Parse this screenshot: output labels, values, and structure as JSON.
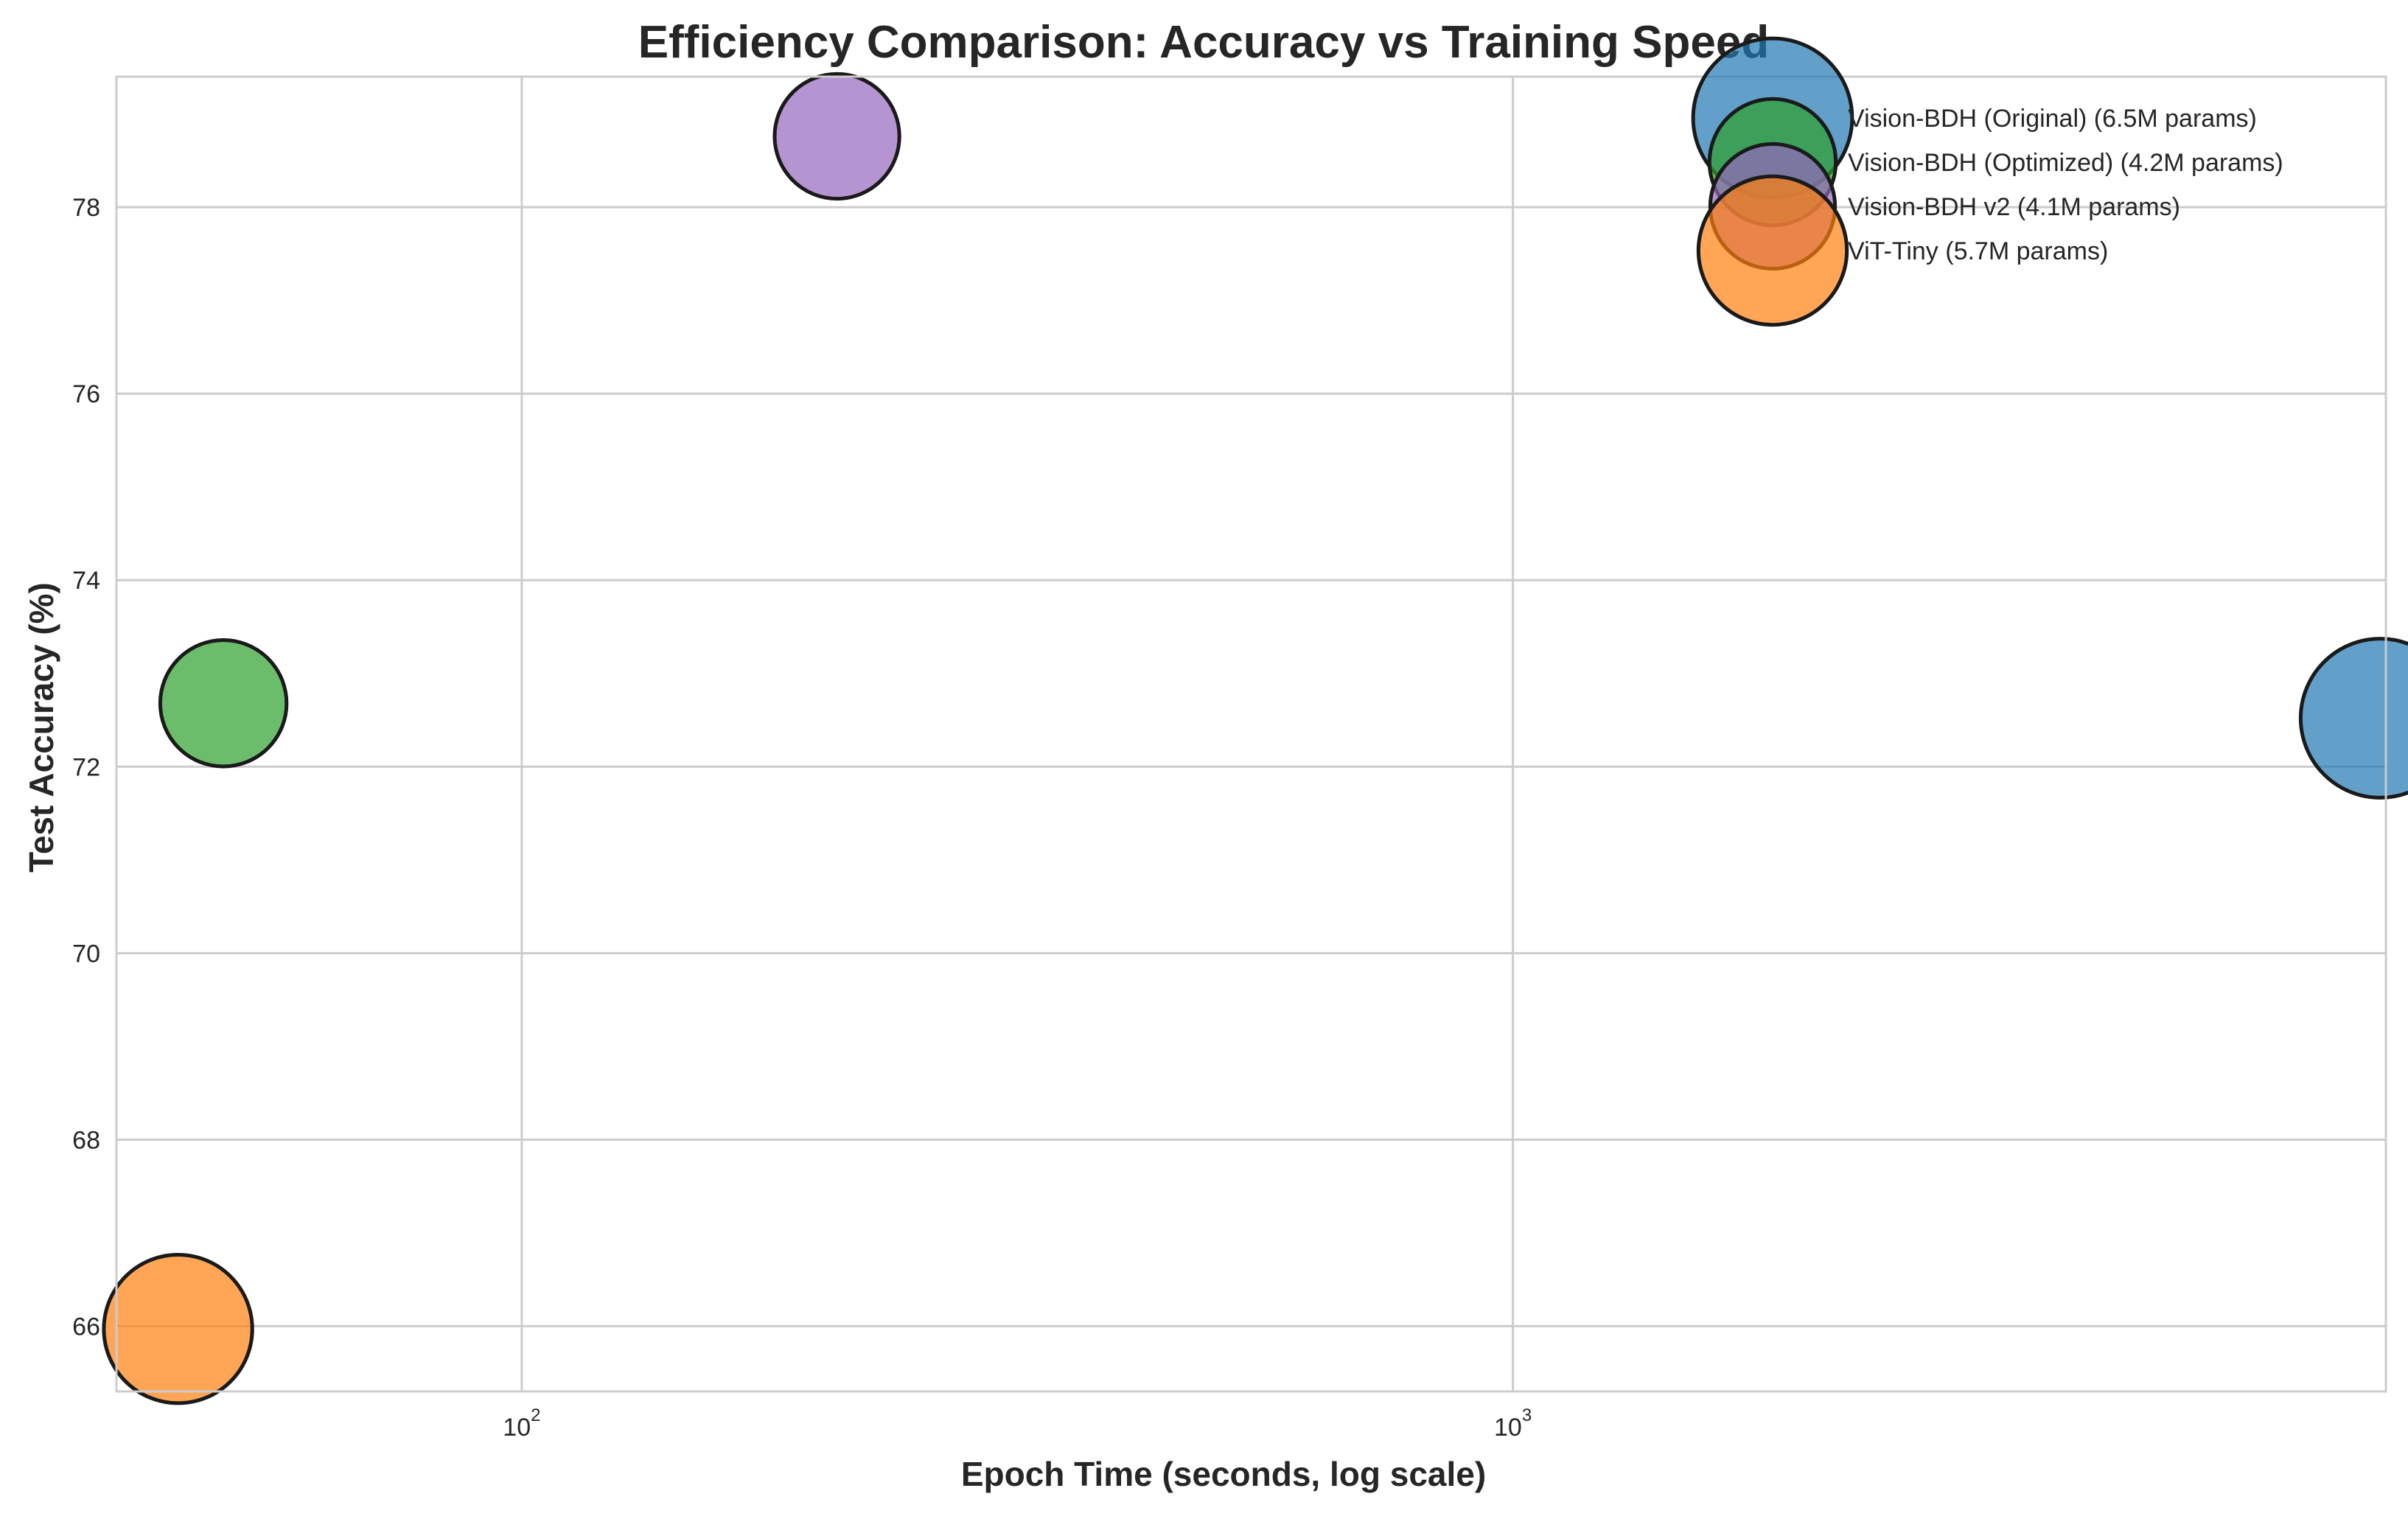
{
  "chart_data": {
    "type": "scatter",
    "title": "Efficiency Comparison: Accuracy vs Training Speed",
    "xlabel": "Epoch Time (seconds, log scale)",
    "ylabel": "Test Accuracy (%)",
    "xscale": "log",
    "xlim": [
      39,
      7600
    ],
    "ylim": [
      65.3,
      79.4
    ],
    "x_ticks": [
      {
        "value": 100,
        "base": "10",
        "exp": "2"
      },
      {
        "value": 1000,
        "base": "10",
        "exp": "3"
      }
    ],
    "y_ticks": [
      66,
      68,
      70,
      72,
      74,
      76,
      78
    ],
    "grid": true,
    "legend_position": "top-right",
    "series": [
      {
        "name": "Vision-BDH (Original) (6.5M params)",
        "x": 7500,
        "y": 72.52,
        "params_m": 6.5,
        "color": "#1f77b4"
      },
      {
        "name": "Vision-BDH (Optimized) (4.2M params)",
        "x": 50,
        "y": 72.68,
        "params_m": 4.2,
        "color": "#2ca02c"
      },
      {
        "name": "Vision-BDH v2 (4.1M params)",
        "x": 208,
        "y": 78.76,
        "params_m": 4.1,
        "color": "#9467bd"
      },
      {
        "name": "ViT-Tiny (5.7M params)",
        "x": 45,
        "y": 65.97,
        "params_m": 5.7,
        "color": "#ff7f0e"
      }
    ]
  }
}
